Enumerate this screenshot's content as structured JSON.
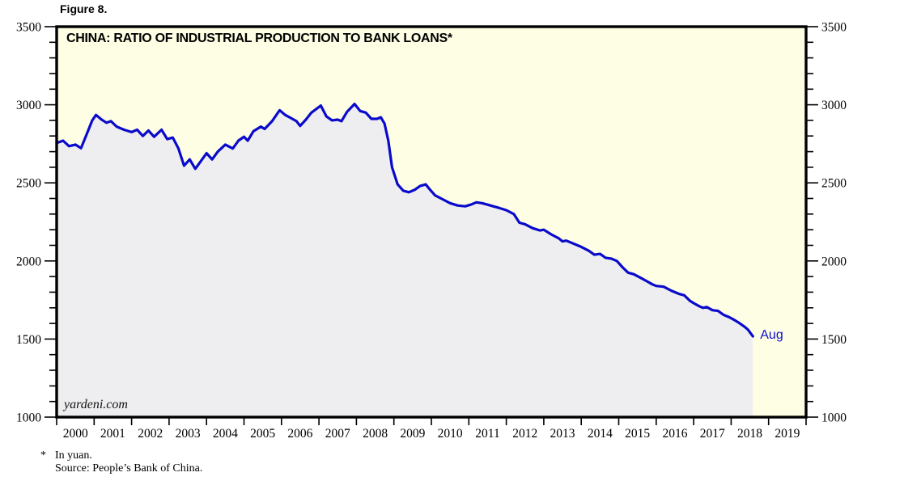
{
  "page": {
    "figure_label": "Figure 8.",
    "watermark": "yardeni.com",
    "footnote_marker": "*",
    "footnote_line1": "In yuan.",
    "footnote_line2": "Source: People’s Bank of China."
  },
  "chart_data": {
    "type": "area",
    "title": "CHINA: RATIO OF INDUSTRIAL PRODUCTION TO BANK LOANS*",
    "last_point_label": "Aug",
    "last_point": {
      "x": 2018.58,
      "y": 1517
    },
    "x_range": [
      2000,
      2020
    ],
    "y_range": [
      1000,
      3500
    ],
    "y_major_ticks": [
      1000,
      1500,
      2000,
      2500,
      3000,
      3500
    ],
    "y_minor_step": 100,
    "x_tick_labels": [
      "2000",
      "2001",
      "2002",
      "2003",
      "2004",
      "2005",
      "2006",
      "2007",
      "2008",
      "2009",
      "2010",
      "2011",
      "2012",
      "2013",
      "2014",
      "2015",
      "2016",
      "2017",
      "2018",
      "2019"
    ],
    "grid": "off",
    "legend": "none",
    "colors": {
      "plot_bg": "#FEFEE4",
      "area_fill": "#EEEEF0",
      "line": "#0A0ACC",
      "last_point_label": "#0F0FCD",
      "axis": "#000000"
    },
    "series": [
      {
        "name": "Ratio of industrial production to bank loans (yuan)",
        "x": [
          2000.0,
          2000.17,
          2000.33,
          2000.5,
          2000.65,
          2000.8,
          2000.95,
          2001.05,
          2001.2,
          2001.33,
          2001.45,
          2001.6,
          2001.8,
          2002.0,
          2002.15,
          2002.3,
          2002.45,
          2002.6,
          2002.8,
          2002.95,
          2003.1,
          2003.25,
          2003.4,
          2003.55,
          2003.7,
          2003.85,
          2004.0,
          2004.15,
          2004.3,
          2004.5,
          2004.7,
          2004.85,
          2005.0,
          2005.1,
          2005.25,
          2005.45,
          2005.55,
          2005.75,
          2005.95,
          2006.1,
          2006.25,
          2006.4,
          2006.5,
          2006.65,
          2006.8,
          2007.05,
          2007.2,
          2007.35,
          2007.5,
          2007.6,
          2007.75,
          2007.95,
          2008.1,
          2008.25,
          2008.4,
          2008.55,
          2008.65,
          2008.75,
          2008.85,
          2008.95,
          2009.1,
          2009.25,
          2009.4,
          2009.55,
          2009.7,
          2009.85,
          2009.95,
          2010.1,
          2010.3,
          2010.5,
          2010.7,
          2010.9,
          2011.05,
          2011.2,
          2011.35,
          2011.5,
          2011.65,
          2011.8,
          2012.0,
          2012.2,
          2012.35,
          2012.5,
          2012.7,
          2012.9,
          2013.0,
          2013.2,
          2013.4,
          2013.5,
          2013.6,
          2013.8,
          2014.0,
          2014.2,
          2014.35,
          2014.5,
          2014.65,
          2014.8,
          2014.95,
          2015.1,
          2015.25,
          2015.4,
          2015.6,
          2015.75,
          2015.9,
          2016.0,
          2016.2,
          2016.4,
          2016.6,
          2016.75,
          2016.9,
          2017.0,
          2017.15,
          2017.25,
          2017.35,
          2017.5,
          2017.65,
          2017.8,
          2017.95,
          2018.1,
          2018.2,
          2018.35,
          2018.45,
          2018.58
        ],
        "values": [
          2755,
          2770,
          2735,
          2745,
          2722,
          2810,
          2900,
          2935,
          2905,
          2885,
          2895,
          2860,
          2840,
          2825,
          2840,
          2800,
          2835,
          2795,
          2840,
          2780,
          2790,
          2720,
          2610,
          2650,
          2590,
          2640,
          2690,
          2650,
          2700,
          2745,
          2720,
          2770,
          2795,
          2770,
          2830,
          2860,
          2845,
          2895,
          2965,
          2935,
          2915,
          2895,
          2865,
          2905,
          2950,
          2995,
          2925,
          2900,
          2905,
          2895,
          2955,
          3005,
          2960,
          2950,
          2910,
          2910,
          2920,
          2880,
          2770,
          2600,
          2490,
          2450,
          2440,
          2455,
          2480,
          2490,
          2460,
          2420,
          2395,
          2370,
          2355,
          2350,
          2360,
          2375,
          2370,
          2360,
          2350,
          2340,
          2325,
          2300,
          2245,
          2235,
          2210,
          2195,
          2200,
          2170,
          2145,
          2125,
          2130,
          2110,
          2090,
          2065,
          2040,
          2045,
          2020,
          2015,
          2000,
          1960,
          1925,
          1915,
          1890,
          1870,
          1850,
          1840,
          1835,
          1810,
          1790,
          1780,
          1745,
          1730,
          1710,
          1700,
          1705,
          1685,
          1680,
          1655,
          1640,
          1620,
          1605,
          1580,
          1560,
          1517
        ]
      }
    ]
  }
}
